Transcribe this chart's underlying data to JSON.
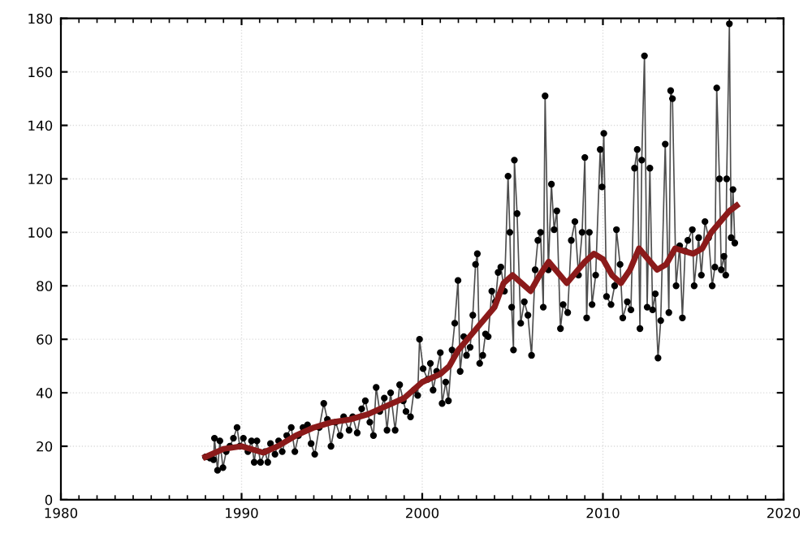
{
  "chart_data": {
    "type": "line",
    "xlim": [
      1980,
      2020
    ],
    "xticks": [
      1980,
      1990,
      2000,
      2010,
      2020
    ],
    "ylim": [
      0,
      180
    ],
    "yticks": [
      0,
      20,
      40,
      60,
      80,
      100,
      120,
      140,
      160,
      180
    ],
    "grid": true,
    "legend": false,
    "series": [
      {
        "color": "#222222",
        "marker": "circle",
        "x": [
          1988.0,
          1988.25,
          1988.45,
          1988.5,
          1988.67,
          1988.8,
          1988.97,
          1989.15,
          1989.35,
          1989.55,
          1989.75,
          1989.9,
          1990.1,
          1990.35,
          1990.55,
          1990.7,
          1990.85,
          1991.05,
          1991.3,
          1991.45,
          1991.6,
          1991.85,
          1992.05,
          1992.25,
          1992.5,
          1992.75,
          1992.95,
          1993.15,
          1993.4,
          1993.65,
          1993.85,
          1994.05,
          1994.3,
          1994.55,
          1994.75,
          1994.95,
          1995.2,
          1995.45,
          1995.65,
          1995.95,
          1996.15,
          1996.4,
          1996.65,
          1996.85,
          1997.1,
          1997.3,
          1997.45,
          1997.65,
          1997.9,
          1998.05,
          1998.25,
          1998.5,
          1998.75,
          1998.95,
          1999.1,
          1999.35,
          1999.55,
          1999.75,
          1999.85,
          2000.05,
          2000.3,
          2000.45,
          2000.6,
          2000.8,
          2001.0,
          2001.1,
          2001.3,
          2001.45,
          2001.65,
          2001.8,
          2001.98,
          2002.1,
          2002.3,
          2002.45,
          2002.65,
          2002.8,
          2002.95,
          2003.05,
          2003.18,
          2003.35,
          2003.5,
          2003.65,
          2003.85,
          2004.05,
          2004.2,
          2004.35,
          2004.55,
          2004.75,
          2004.85,
          2004.95,
          2005.05,
          2005.1,
          2005.25,
          2005.45,
          2005.65,
          2005.85,
          2006.05,
          2006.25,
          2006.4,
          2006.55,
          2006.7,
          2006.8,
          2006.98,
          2007.15,
          2007.3,
          2007.45,
          2007.65,
          2007.8,
          2008.05,
          2008.25,
          2008.45,
          2008.65,
          2008.85,
          2009.0,
          2009.1,
          2009.25,
          2009.4,
          2009.6,
          2009.85,
          2009.95,
          2010.05,
          2010.2,
          2010.45,
          2010.65,
          2010.75,
          2010.95,
          2011.1,
          2011.35,
          2011.55,
          2011.75,
          2011.9,
          2012.05,
          2012.15,
          2012.3,
          2012.45,
          2012.6,
          2012.75,
          2012.9,
          2013.05,
          2013.2,
          2013.45,
          2013.65,
          2013.75,
          2013.85,
          2014.05,
          2014.25,
          2014.4,
          2014.55,
          2014.7,
          2014.95,
          2015.05,
          2015.3,
          2015.45,
          2015.65,
          2015.85,
          2016.05,
          2016.2,
          2016.3,
          2016.45,
          2016.55,
          2016.7,
          2016.8,
          2016.85,
          2017.0,
          2017.1,
          2017.2,
          2017.3
        ],
        "values": [
          16,
          15.6,
          15,
          23,
          11,
          22,
          12,
          18,
          20,
          23,
          27,
          20,
          23,
          18,
          22,
          14,
          22,
          14,
          18,
          14,
          21,
          17,
          22,
          18,
          24,
          27,
          18,
          24,
          27,
          28,
          21,
          17,
          27,
          36,
          30,
          20,
          29,
          24,
          31,
          26,
          31,
          25,
          34,
          37,
          29,
          24,
          42,
          33,
          38,
          26,
          40,
          26,
          43,
          37,
          33,
          31,
          41,
          39,
          60,
          49,
          45,
          51,
          41,
          48,
          55,
          36,
          44,
          37,
          56,
          66,
          82,
          48,
          61,
          54,
          57,
          69,
          88,
          92,
          51,
          54,
          62,
          61,
          78,
          74,
          85,
          87,
          78,
          121,
          100,
          72,
          56,
          127,
          107,
          66,
          74,
          69,
          54,
          86,
          97,
          100,
          72,
          151,
          86,
          118,
          101,
          108,
          64,
          73,
          70,
          97,
          104,
          84,
          100,
          128,
          68,
          100,
          73,
          84,
          131,
          117,
          137,
          76,
          73,
          80,
          101,
          88,
          68,
          74,
          71,
          124,
          131,
          64,
          127,
          166,
          72,
          124,
          71,
          77,
          53,
          67,
          133,
          70,
          153,
          150,
          80,
          95,
          68,
          93,
          97,
          101,
          80,
          98,
          84,
          104,
          98,
          80,
          87,
          154,
          120,
          86,
          91,
          84,
          120,
          178,
          98,
          116,
          96
        ]
      },
      {
        "color": "#8b1a1a",
        "marker": "none",
        "x": [
          1988.0,
          1989,
          1990,
          1991.2,
          1992,
          1993,
          1994,
          1995,
          1996,
          1997,
          1998,
          1999,
          2000,
          2001,
          2001.5,
          2002,
          2003,
          2004,
          2004.5,
          2005,
          2005.5,
          2006,
          2006.5,
          2007,
          2007.5,
          2008,
          2008.5,
          2009,
          2009.5,
          2010,
          2010.5,
          2011,
          2011.5,
          2012,
          2012.5,
          2013,
          2013.5,
          2014,
          2014.5,
          2015,
          2015.5,
          2016,
          2016.5,
          2017,
          2017.4
        ],
        "values": [
          16,
          19,
          20,
          17.6,
          20,
          24,
          27,
          29,
          30,
          32,
          35,
          38,
          44,
          47,
          50,
          56,
          64,
          72,
          81,
          84,
          81,
          78,
          84,
          89,
          85,
          81,
          85,
          89,
          92,
          90,
          84,
          81,
          86,
          94,
          90,
          86,
          88,
          94,
          93,
          92,
          94,
          100,
          104,
          108,
          110
        ]
      }
    ]
  }
}
